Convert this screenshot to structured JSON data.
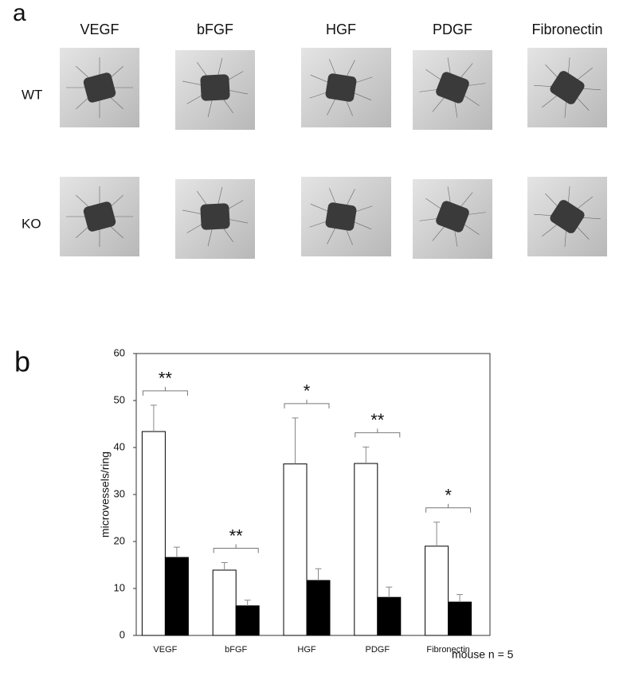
{
  "panel_a": {
    "label": "a",
    "columns": [
      "VEGF",
      "bFGF",
      "HGF",
      "PDGF",
      "Fibronectin"
    ],
    "rows": [
      "WT",
      "KO"
    ]
  },
  "chart_data": {
    "type": "bar",
    "panel_label": "b",
    "ylabel": "microvessels/ring",
    "categories": [
      "VEGF",
      "bFGF",
      "HGF",
      "PDGF",
      "Fibronectin"
    ],
    "series": [
      {
        "color": "#ffffff",
        "values": [
          43.4,
          13.9,
          36.5,
          36.6,
          19.0
        ],
        "errors": [
          5.6,
          1.6,
          9.8,
          3.5,
          5.1
        ]
      },
      {
        "color": "#000000",
        "values": [
          16.6,
          6.3,
          11.7,
          8.1,
          7.1
        ],
        "errors": [
          2.2,
          1.2,
          2.5,
          2.2,
          1.6
        ]
      }
    ],
    "significance": [
      "**",
      "**",
      "*",
      "**",
      "*"
    ],
    "ylim": [
      0,
      60
    ],
    "yticks": [
      0,
      10,
      20,
      30,
      40,
      50,
      60
    ],
    "note": "mouse n = 5"
  }
}
